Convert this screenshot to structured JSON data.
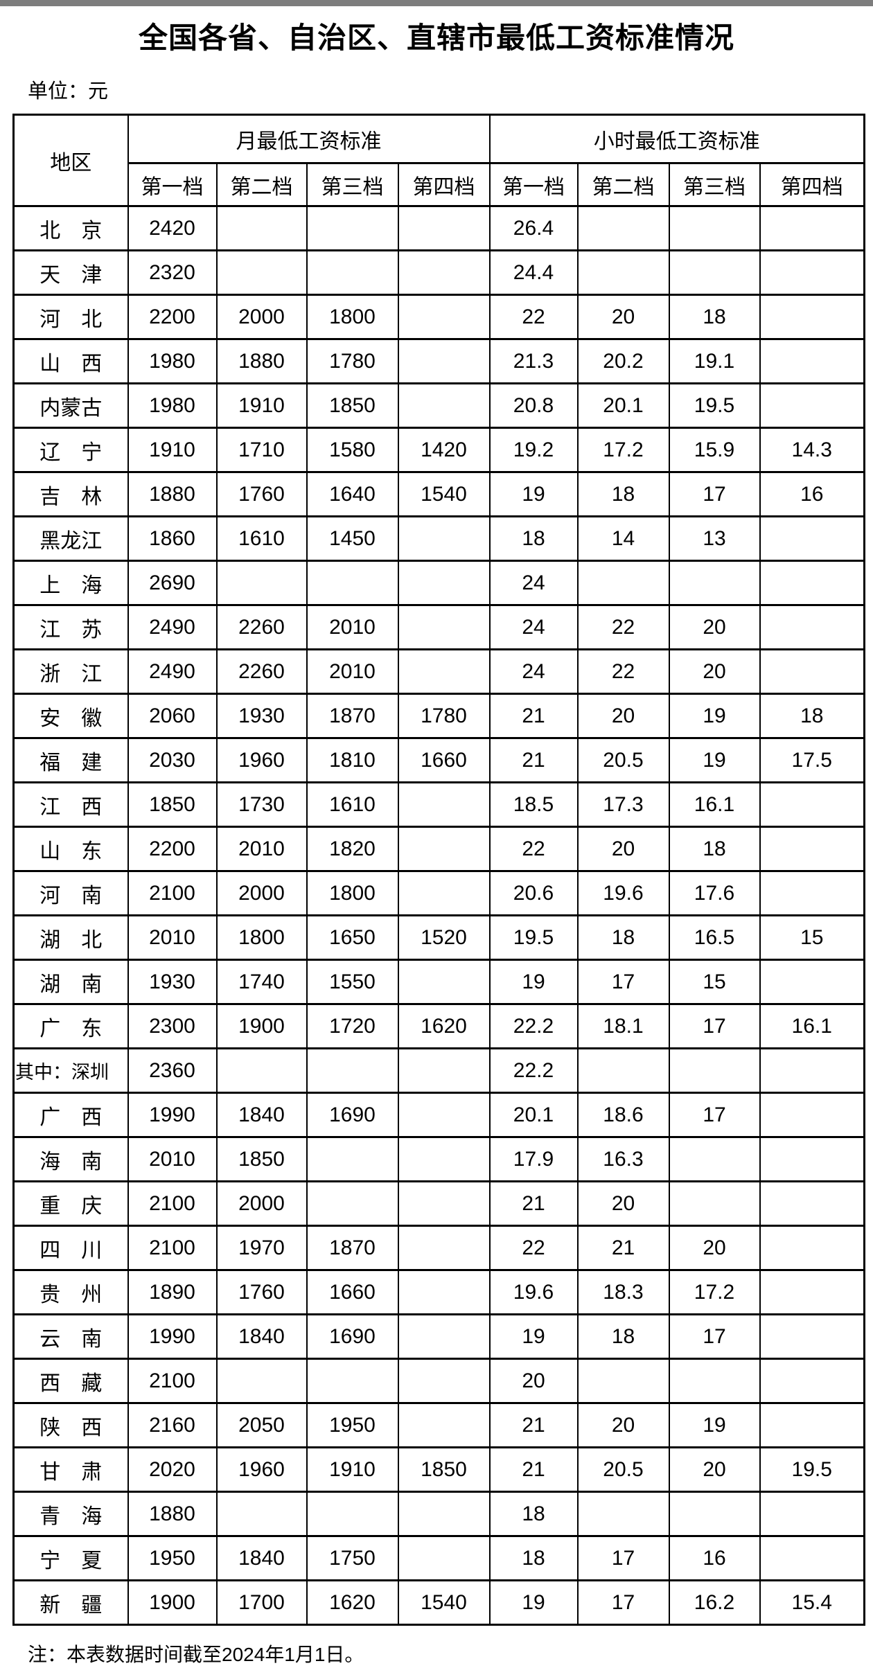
{
  "page": {
    "title": "全国各省、自治区、直辖市最低工资标准情况",
    "unit_label": "单位：元",
    "note": "注：本表数据时间截至2024年1月1日。"
  },
  "table": {
    "region_header": "地区",
    "groups": [
      {
        "label": "月最低工资标准",
        "tiers": [
          "第一档",
          "第二档",
          "第三档",
          "第四档"
        ]
      },
      {
        "label": "小时最低工资标准",
        "tiers": [
          "第一档",
          "第二档",
          "第三档",
          "第四档"
        ]
      }
    ],
    "rows": [
      {
        "region": "北　京",
        "monthly": [
          "2420",
          "",
          "",
          ""
        ],
        "hourly": [
          "26.4",
          "",
          "",
          ""
        ]
      },
      {
        "region": "天　津",
        "monthly": [
          "2320",
          "",
          "",
          ""
        ],
        "hourly": [
          "24.4",
          "",
          "",
          ""
        ]
      },
      {
        "region": "河　北",
        "monthly": [
          "2200",
          "2000",
          "1800",
          ""
        ],
        "hourly": [
          "22",
          "20",
          "18",
          ""
        ]
      },
      {
        "region": "山　西",
        "monthly": [
          "1980",
          "1880",
          "1780",
          ""
        ],
        "hourly": [
          "21.3",
          "20.2",
          "19.1",
          ""
        ]
      },
      {
        "region": "内蒙古",
        "monthly": [
          "1980",
          "1910",
          "1850",
          ""
        ],
        "hourly": [
          "20.8",
          "20.1",
          "19.5",
          ""
        ]
      },
      {
        "region": "辽　宁",
        "monthly": [
          "1910",
          "1710",
          "1580",
          "1420"
        ],
        "hourly": [
          "19.2",
          "17.2",
          "15.9",
          "14.3"
        ]
      },
      {
        "region": "吉　林",
        "monthly": [
          "1880",
          "1760",
          "1640",
          "1540"
        ],
        "hourly": [
          "19",
          "18",
          "17",
          "16"
        ]
      },
      {
        "region": "黑龙江",
        "monthly": [
          "1860",
          "1610",
          "1450",
          ""
        ],
        "hourly": [
          "18",
          "14",
          "13",
          ""
        ]
      },
      {
        "region": "上　海",
        "monthly": [
          "2690",
          "",
          "",
          ""
        ],
        "hourly": [
          "24",
          "",
          "",
          ""
        ]
      },
      {
        "region": "江　苏",
        "monthly": [
          "2490",
          "2260",
          "2010",
          ""
        ],
        "hourly": [
          "24",
          "22",
          "20",
          ""
        ]
      },
      {
        "region": "浙　江",
        "monthly": [
          "2490",
          "2260",
          "2010",
          ""
        ],
        "hourly": [
          "24",
          "22",
          "20",
          ""
        ]
      },
      {
        "region": "安　徽",
        "monthly": [
          "2060",
          "1930",
          "1870",
          "1780"
        ],
        "hourly": [
          "21",
          "20",
          "19",
          "18"
        ]
      },
      {
        "region": "福　建",
        "monthly": [
          "2030",
          "1960",
          "1810",
          "1660"
        ],
        "hourly": [
          "21",
          "20.5",
          "19",
          "17.5"
        ]
      },
      {
        "region": "江　西",
        "monthly": [
          "1850",
          "1730",
          "1610",
          ""
        ],
        "hourly": [
          "18.5",
          "17.3",
          "16.1",
          ""
        ]
      },
      {
        "region": "山　东",
        "monthly": [
          "2200",
          "2010",
          "1820",
          ""
        ],
        "hourly": [
          "22",
          "20",
          "18",
          ""
        ]
      },
      {
        "region": "河　南",
        "monthly": [
          "2100",
          "2000",
          "1800",
          ""
        ],
        "hourly": [
          "20.6",
          "19.6",
          "17.6",
          ""
        ]
      },
      {
        "region": "湖　北",
        "monthly": [
          "2010",
          "1800",
          "1650",
          "1520"
        ],
        "hourly": [
          "19.5",
          "18",
          "16.5",
          "15"
        ]
      },
      {
        "region": "湖　南",
        "monthly": [
          "1930",
          "1740",
          "1550",
          ""
        ],
        "hourly": [
          "19",
          "17",
          "15",
          ""
        ]
      },
      {
        "region": "广　东",
        "monthly": [
          "2300",
          "1900",
          "1720",
          "1620"
        ],
        "hourly": [
          "22.2",
          "18.1",
          "17",
          "16.1"
        ]
      },
      {
        "region": "其中：深圳",
        "monthly": [
          "2360",
          "",
          "",
          ""
        ],
        "hourly": [
          "22.2",
          "",
          "",
          ""
        ]
      },
      {
        "region": "广　西",
        "monthly": [
          "1990",
          "1840",
          "1690",
          ""
        ],
        "hourly": [
          "20.1",
          "18.6",
          "17",
          ""
        ]
      },
      {
        "region": "海　南",
        "monthly": [
          "2010",
          "1850",
          "",
          ""
        ],
        "hourly": [
          "17.9",
          "16.3",
          "",
          ""
        ]
      },
      {
        "region": "重　庆",
        "monthly": [
          "2100",
          "2000",
          "",
          ""
        ],
        "hourly": [
          "21",
          "20",
          "",
          ""
        ]
      },
      {
        "region": "四　川",
        "monthly": [
          "2100",
          "1970",
          "1870",
          ""
        ],
        "hourly": [
          "22",
          "21",
          "20",
          ""
        ]
      },
      {
        "region": "贵　州",
        "monthly": [
          "1890",
          "1760",
          "1660",
          ""
        ],
        "hourly": [
          "19.6",
          "18.3",
          "17.2",
          ""
        ]
      },
      {
        "region": "云　南",
        "monthly": [
          "1990",
          "1840",
          "1690",
          ""
        ],
        "hourly": [
          "19",
          "18",
          "17",
          ""
        ]
      },
      {
        "region": "西　藏",
        "monthly": [
          "2100",
          "",
          "",
          ""
        ],
        "hourly": [
          "20",
          "",
          "",
          ""
        ]
      },
      {
        "region": "陕　西",
        "monthly": [
          "2160",
          "2050",
          "1950",
          ""
        ],
        "hourly": [
          "21",
          "20",
          "19",
          ""
        ]
      },
      {
        "region": "甘　肃",
        "monthly": [
          "2020",
          "1960",
          "1910",
          "1850"
        ],
        "hourly": [
          "21",
          "20.5",
          "20",
          "19.5"
        ]
      },
      {
        "region": "青　海",
        "monthly": [
          "1880",
          "",
          "",
          ""
        ],
        "hourly": [
          "18",
          "",
          "",
          ""
        ]
      },
      {
        "region": "宁　夏",
        "monthly": [
          "1950",
          "1840",
          "1750",
          ""
        ],
        "hourly": [
          "18",
          "17",
          "16",
          ""
        ]
      },
      {
        "region": "新　疆",
        "monthly": [
          "1900",
          "1700",
          "1620",
          "1540"
        ],
        "hourly": [
          "19",
          "17",
          "16.2",
          "15.4"
        ]
      }
    ]
  }
}
